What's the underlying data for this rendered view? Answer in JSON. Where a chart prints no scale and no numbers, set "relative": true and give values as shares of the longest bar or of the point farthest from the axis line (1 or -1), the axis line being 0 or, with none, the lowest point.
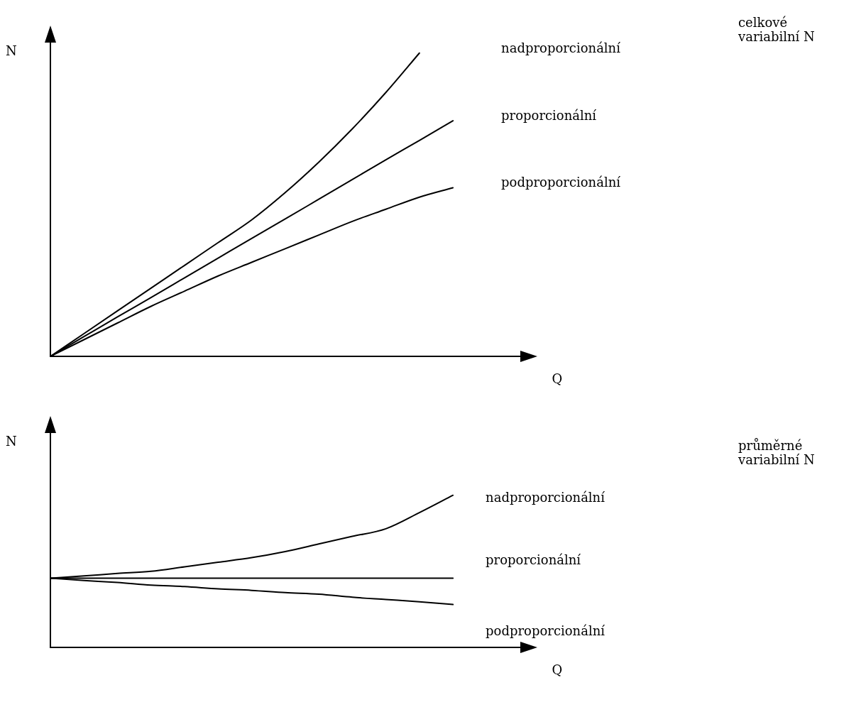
{
  "chart_data": [
    {
      "type": "line",
      "relative": true,
      "xlabel": "Q",
      "ylabel": "N",
      "annotations": [
        "celkové variabilní N"
      ],
      "categories": [
        null,
        null,
        null,
        null,
        null,
        null,
        null,
        null,
        null,
        null,
        null,
        null,
        null,
        null,
        null
      ],
      "grid": false,
      "legend": false,
      "tick_labels": false,
      "marker": "none",
      "line_style": "solid",
      "series": [
        {
          "name": "nadproporcionální",
          "color": "#000000",
          "values": [
            0,
            0.075,
            0.15,
            0.225,
            0.3,
            0.375,
            0.45,
            0.54,
            0.64,
            0.75,
            0.87,
            1.0,
            null,
            null,
            null
          ]
        },
        {
          "name": "proporcionální",
          "color": "#000000",
          "values": [
            0,
            0.065,
            0.13,
            0.194,
            0.259,
            0.324,
            0.389,
            0.453,
            0.518,
            0.583,
            0.648,
            0.712,
            0.777,
            null,
            null
          ]
        },
        {
          "name": "podproporcionální",
          "color": "#000000",
          "values": [
            0,
            0.055,
            0.11,
            0.165,
            0.215,
            0.265,
            0.31,
            0.355,
            0.4,
            0.445,
            0.485,
            0.525,
            0.556,
            null,
            null
          ]
        }
      ]
    },
    {
      "type": "line",
      "relative": true,
      "xlabel": "Q",
      "ylabel": "N",
      "annotations": [
        "průměrné variabilní N"
      ],
      "categories": [
        null,
        null,
        null,
        null,
        null,
        null,
        null,
        null,
        null,
        null,
        null,
        null,
        null,
        null,
        null
      ],
      "grid": false,
      "legend": false,
      "tick_labels": false,
      "marker": "none",
      "line_style": "solid",
      "series": [
        {
          "name": "nadproporcionální",
          "color": "#000000",
          "values": [
            0.455,
            0.47,
            0.486,
            0.5,
            0.53,
            0.56,
            0.59,
            0.63,
            0.68,
            0.73,
            0.78,
            0.886,
            1.0,
            null,
            null
          ]
        },
        {
          "name": "proporcionální",
          "color": "#000000",
          "values": [
            0.455,
            0.455,
            0.455,
            0.455,
            0.455,
            0.455,
            0.455,
            0.455,
            0.455,
            0.455,
            0.455,
            0.455,
            0.455,
            null,
            null
          ]
        },
        {
          "name": "podproporcionální",
          "color": "#000000",
          "values": [
            0.455,
            0.44,
            0.427,
            0.41,
            0.4,
            0.385,
            0.375,
            0.36,
            0.35,
            0.33,
            0.315,
            0.3,
            0.282,
            null,
            null
          ]
        }
      ]
    }
  ]
}
